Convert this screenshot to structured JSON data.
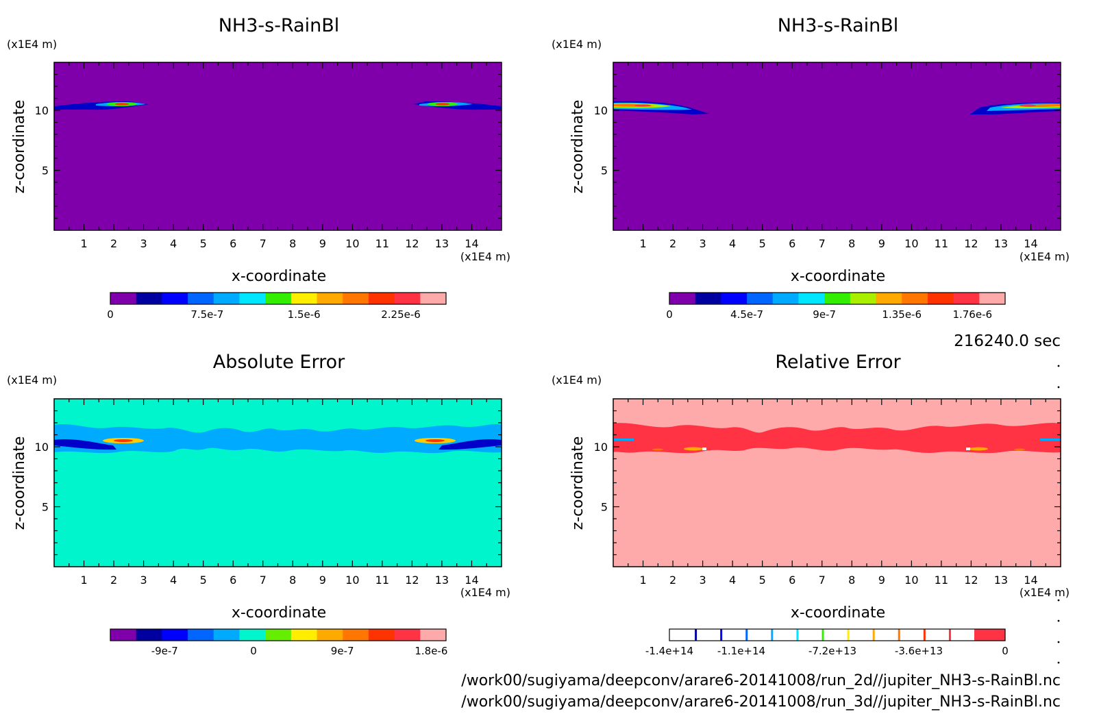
{
  "time_label": "216240.0 sec",
  "files": [
    "/work00/sugiyama/deepconv/arare6-20141008/run_2d//jupiter_NH3-s-RainBl.nc",
    "/work00/sugiyama/deepconv/arare6-20141008/run_3d//jupiter_NH3-s-RainBl.nc"
  ],
  "axis_unit": "(x1E4 m)",
  "xlabel": "x-coordinate",
  "ylabel": "z-coordinate",
  "chart_data": [
    {
      "type": "heatmap",
      "title": "NH3-s-RainBl",
      "xlabel": "x-coordinate",
      "ylabel": "z-coordinate",
      "xunit": "(x1E4 m)",
      "yunit": "(x1E4 m)",
      "xlim": [
        0,
        15
      ],
      "ylim": [
        0,
        14
      ],
      "xticks": [
        "1",
        "2",
        "3",
        "4",
        "5",
        "6",
        "7",
        "8",
        "9",
        "10",
        "11",
        "12",
        "13",
        "14"
      ],
      "yticks": [
        "5",
        "10"
      ],
      "background_color": "#7f00aa",
      "colorbar": {
        "colors": [
          "#7f00aa",
          "#0000a0",
          "#0000ff",
          "#0066ff",
          "#00aaff",
          "#00e6ff",
          "#33ee00",
          "#ffee00",
          "#ffaa00",
          "#ff7700",
          "#ff3300",
          "#ff3344",
          "#ffaaaa"
        ],
        "labels": [
          "0",
          "7.5e-7",
          "1.5e-6",
          "2.25e-6"
        ],
        "label_values": [
          0,
          7.5e-07,
          1.5e-06,
          2.25e-06
        ],
        "min": 0,
        "max": 2.6e-06
      }
    },
    {
      "type": "heatmap",
      "title": "NH3-s-RainBl",
      "xlabel": "x-coordinate",
      "ylabel": "z-coordinate",
      "xunit": "(x1E4 m)",
      "yunit": "(x1E4 m)",
      "xlim": [
        0,
        15
      ],
      "ylim": [
        0,
        14
      ],
      "xticks": [
        "1",
        "2",
        "3",
        "4",
        "5",
        "6",
        "7",
        "8",
        "9",
        "10",
        "11",
        "12",
        "13",
        "14"
      ],
      "yticks": [
        "5",
        "10"
      ],
      "background_color": "#7f00aa",
      "colorbar": {
        "colors": [
          "#7f00aa",
          "#0000a0",
          "#0000ff",
          "#0066ff",
          "#00aaff",
          "#00e6ff",
          "#33ee00",
          "#aaee00",
          "#ffaa00",
          "#ff7700",
          "#ff3300",
          "#ff3344",
          "#ffaaaa"
        ],
        "labels": [
          "0",
          "4.5e-7",
          "9e-7",
          "1.35e-6",
          "1.76e-6"
        ],
        "label_values": [
          0,
          4.5e-07,
          9e-07,
          1.35e-06,
          1.76e-06
        ],
        "min": 0,
        "max": 1.95e-06
      }
    },
    {
      "type": "heatmap",
      "title": "Absolute Error",
      "xlabel": "x-coordinate",
      "ylabel": "z-coordinate",
      "xunit": "(x1E4 m)",
      "yunit": "(x1E4 m)",
      "xlim": [
        0,
        15
      ],
      "ylim": [
        0,
        14
      ],
      "xticks": [
        "1",
        "2",
        "3",
        "4",
        "5",
        "6",
        "7",
        "8",
        "9",
        "10",
        "11",
        "12",
        "13",
        "14"
      ],
      "yticks": [
        "5",
        "10"
      ],
      "background_color": "#00f5cc",
      "colorbar": {
        "colors": [
          "#7f00aa",
          "#0000a0",
          "#0000ff",
          "#0066ff",
          "#00aaff",
          "#00f5cc",
          "#66ee00",
          "#ffee00",
          "#ffaa00",
          "#ff7700",
          "#ff3300",
          "#ff3344",
          "#ffaaaa"
        ],
        "labels": [
          "-9e-7",
          "0",
          "9e-7",
          "1.8e-6"
        ],
        "label_values": [
          -9e-07,
          0,
          9e-07,
          1.8e-06
        ],
        "min": -1.45e-06,
        "max": 1.95e-06
      }
    },
    {
      "type": "heatmap",
      "title": "Relative Error",
      "xlabel": "x-coordinate",
      "ylabel": "z-coordinate",
      "xunit": "(x1E4 m)",
      "yunit": "(x1E4 m)",
      "xlim": [
        0,
        15
      ],
      "ylim": [
        0,
        14
      ],
      "xticks": [
        "1",
        "2",
        "3",
        "4",
        "5",
        "6",
        "7",
        "8",
        "9",
        "10",
        "11",
        "12",
        "13",
        "14"
      ],
      "yticks": [
        "5",
        "10"
      ],
      "background_color": "#ffaaaa",
      "colorbar": {
        "colors": [
          "#7f00aa",
          "#0000a0",
          "#0000ff",
          "#0066ff",
          "#00aaff",
          "#00e6ff",
          "#33ee00",
          "#ffee00",
          "#ffaa00",
          "#ff7700",
          "#ff3300",
          "#ff3344"
        ],
        "labels": [
          "-1.4e+14",
          "-1.1e+14",
          "-7.2e+13",
          "-3.6e+13",
          "0"
        ],
        "label_values": [
          -140000000000000.0,
          -110000000000000.0,
          -72000000000000.0,
          -36000000000000.0,
          0
        ],
        "min": -140000000000000.0,
        "max": 0
      }
    }
  ]
}
